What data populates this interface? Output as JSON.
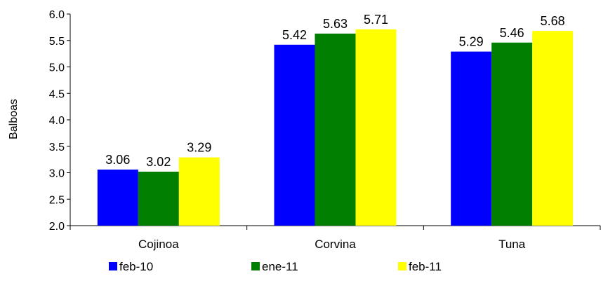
{
  "chart_data": {
    "type": "bar",
    "title": "",
    "xlabel": "",
    "ylabel": "Balboas",
    "ylim": [
      2.0,
      6.0
    ],
    "yticks": [
      "2.0",
      "2.5",
      "3.0",
      "3.5",
      "4.0",
      "4.5",
      "5.0",
      "5.5",
      "6.0"
    ],
    "categories": [
      "Cojinoa",
      "Corvina",
      "Tuna"
    ],
    "series": [
      {
        "name": "feb-10",
        "color": "#0000FF",
        "values": [
          3.06,
          5.42,
          5.29
        ]
      },
      {
        "name": "ene-11",
        "color": "#007F00",
        "values": [
          3.02,
          5.63,
          5.46
        ]
      },
      {
        "name": "feb-11",
        "color": "#FFFF00",
        "values": [
          3.29,
          5.71,
          5.68
        ]
      }
    ],
    "data_labels": [
      [
        "3.06",
        "5.42",
        "5.29"
      ],
      [
        "3.02",
        "5.63",
        "5.46"
      ],
      [
        "3.29",
        "5.71",
        "5.68"
      ]
    ],
    "grid": false,
    "legend_position": "bottom"
  }
}
